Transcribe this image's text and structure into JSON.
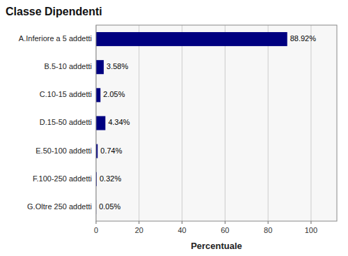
{
  "chart_data": {
    "type": "bar",
    "orientation": "horizontal",
    "title": "Classe Dipendenti",
    "categories": [
      "A.Inferiore a 5 addetti",
      "B.5-10 addetti",
      "C.10-15 addetti",
      "D.15-50 addetti",
      "E.50-100 addetti",
      "F.100-250 addetti",
      "G.Oltre 250 addetti"
    ],
    "values": [
      88.92,
      3.58,
      2.05,
      4.34,
      0.74,
      0.32,
      0.05
    ],
    "value_labels": [
      "88.92%",
      "3.58%",
      "2.05%",
      "4.34%",
      "0.74%",
      "0.32%",
      "0.05%"
    ],
    "data_labels": true,
    "color": "#000080",
    "xlabel": "Percentuale",
    "xlim": [
      0,
      112
    ],
    "xticks": [
      0,
      20,
      40,
      60,
      80,
      100
    ],
    "grid": true
  }
}
